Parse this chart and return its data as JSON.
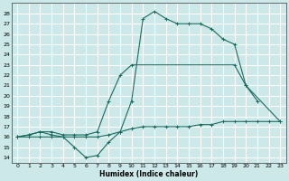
{
  "title": "",
  "xlabel": "Humidex (Indice chaleur)",
  "bg_color": "#cce8e8",
  "grid_color": "#ffffff",
  "line_color": "#1a6b5e",
  "xlim": [
    -0.5,
    23.5
  ],
  "ylim": [
    13.5,
    29.0
  ],
  "xticks": [
    0,
    1,
    2,
    3,
    4,
    5,
    6,
    7,
    8,
    9,
    10,
    11,
    12,
    13,
    14,
    15,
    16,
    17,
    18,
    19,
    20,
    21,
    22,
    23
  ],
  "yticks": [
    14,
    15,
    16,
    17,
    18,
    19,
    20,
    21,
    22,
    23,
    24,
    25,
    26,
    27,
    28
  ],
  "series": [
    {
      "x": [
        0,
        1,
        2,
        3,
        4,
        5,
        6,
        7,
        8,
        9,
        10,
        11,
        12,
        13,
        14,
        15,
        16,
        17,
        18,
        19,
        20,
        21
      ],
      "y": [
        16,
        16.2,
        16.5,
        16.2,
        16.0,
        15.0,
        14.0,
        14.2,
        15.5,
        16.5,
        19.5,
        27.5,
        28.2,
        27.5,
        27.0,
        27.0,
        27.0,
        26.5,
        25.5,
        25.0,
        21.0,
        19.5
      ]
    },
    {
      "x": [
        0,
        1,
        2,
        3,
        4,
        5,
        6,
        7,
        8,
        9,
        10,
        11,
        12,
        13,
        14,
        15,
        16,
        17,
        18,
        19,
        20,
        21,
        22,
        23
      ],
      "y": [
        16.0,
        16.0,
        16.0,
        16.0,
        16.0,
        16.0,
        16.0,
        16.0,
        16.2,
        16.5,
        16.8,
        17.0,
        17.0,
        17.0,
        17.0,
        17.0,
        17.2,
        17.2,
        17.5,
        17.5,
        17.5,
        17.5,
        17.5,
        17.5
      ]
    },
    {
      "x": [
        0,
        1,
        2,
        3,
        4,
        5,
        6,
        7,
        8,
        9,
        10,
        19,
        20,
        23
      ],
      "y": [
        16.0,
        16.2,
        16.5,
        16.5,
        16.2,
        16.2,
        16.2,
        16.5,
        19.5,
        22.0,
        23.0,
        23.0,
        21.0,
        17.5
      ]
    }
  ]
}
